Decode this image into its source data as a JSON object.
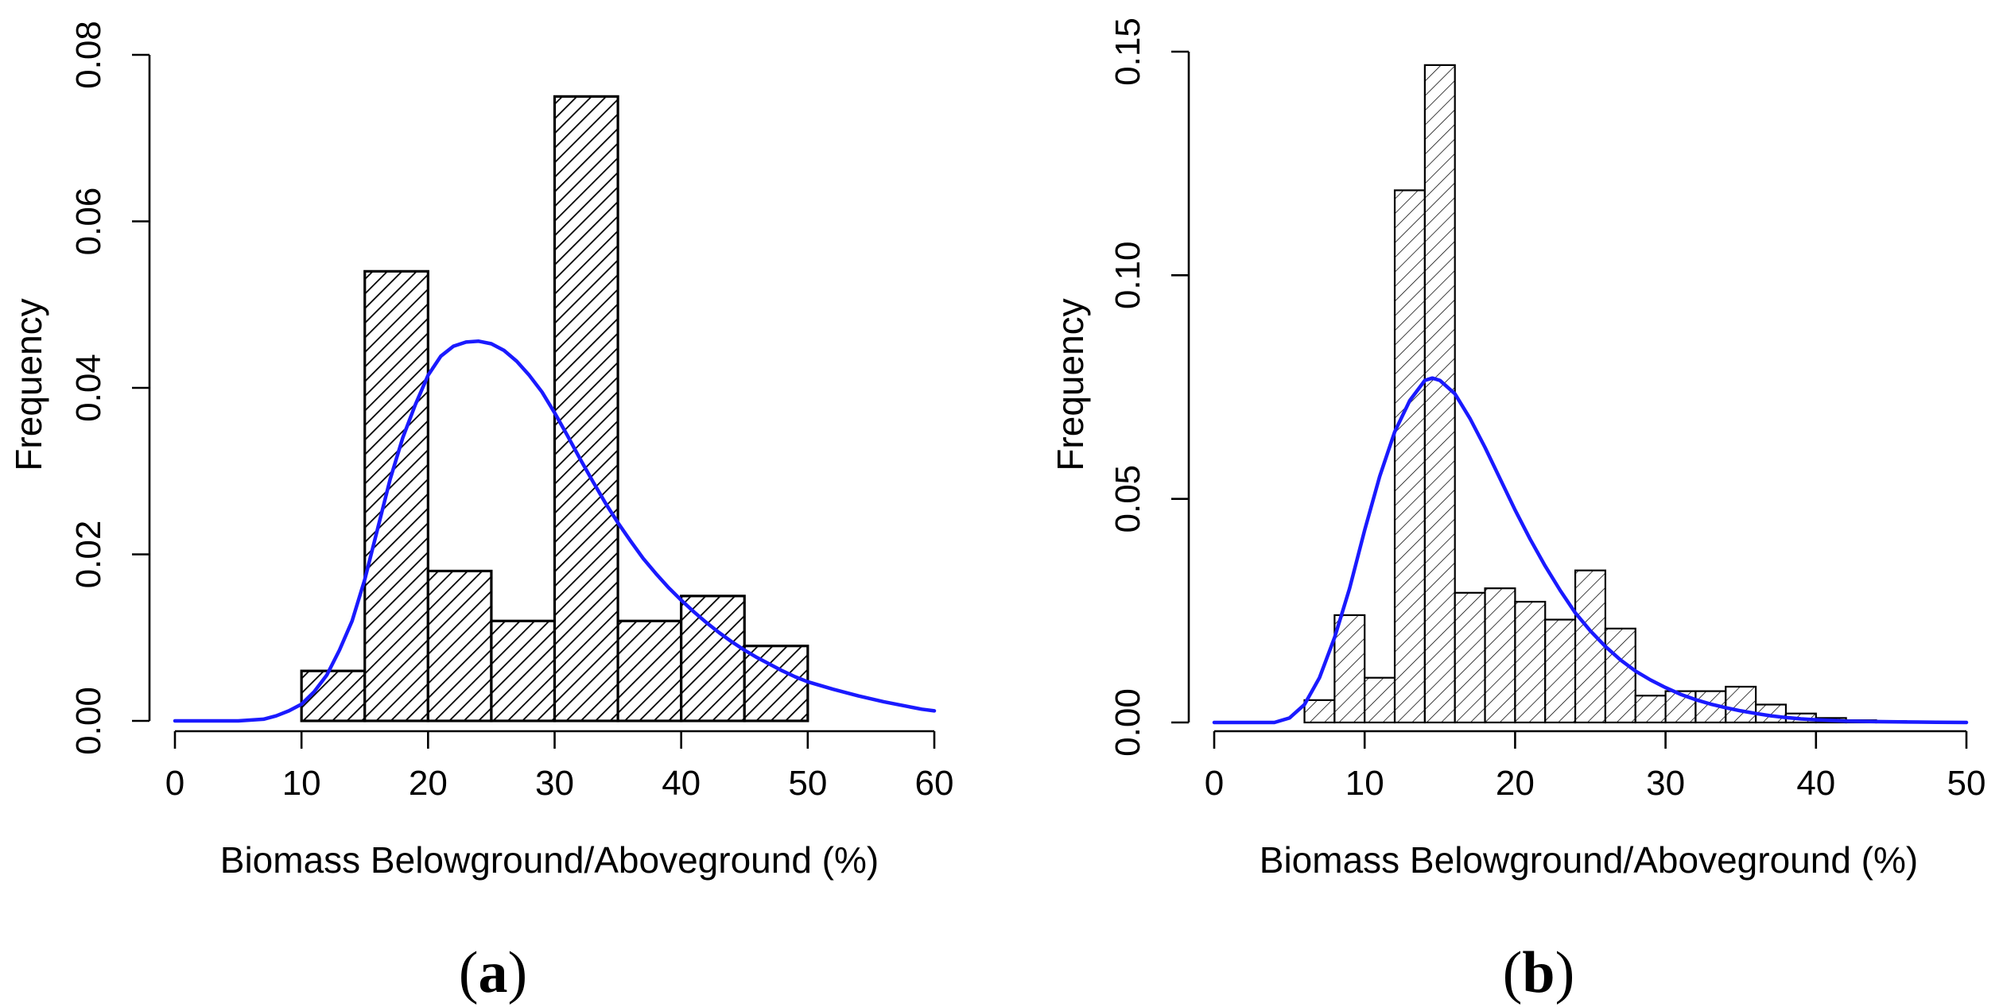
{
  "chart_data": [
    {
      "type": "bar",
      "panel_label": "a",
      "xlabel": "Biomass Belowground/Aboveground (%)",
      "ylabel": "Frequency",
      "xlim": [
        0,
        60
      ],
      "ylim": [
        0,
        0.08
      ],
      "x_ticks": [
        0,
        10,
        20,
        30,
        40,
        50,
        60
      ],
      "y_ticks": [
        0,
        0.02,
        0.04,
        0.06,
        0.08
      ],
      "x_tick_labels": [
        "0",
        "10",
        "20",
        "30",
        "40",
        "50",
        "60"
      ],
      "y_tick_labels": [
        "0.00",
        "0.02",
        "0.04",
        "0.06",
        "0.08"
      ],
      "bins": [
        {
          "x0": 10,
          "x1": 15,
          "value": 0.006
        },
        {
          "x0": 15,
          "x1": 20,
          "value": 0.054
        },
        {
          "x0": 20,
          "x1": 25,
          "value": 0.018
        },
        {
          "x0": 25,
          "x1": 30,
          "value": 0.012
        },
        {
          "x0": 30,
          "x1": 35,
          "value": 0.075
        },
        {
          "x0": 35,
          "x1": 40,
          "value": 0.012
        },
        {
          "x0": 40,
          "x1": 45,
          "value": 0.015
        },
        {
          "x0": 45,
          "x1": 50,
          "value": 0.009
        }
      ],
      "density_curve": {
        "color": "#1a1aff",
        "x": [
          0,
          5,
          7,
          8,
          9,
          10,
          11,
          12,
          13,
          14,
          15,
          16,
          17,
          18,
          19,
          20,
          21,
          22,
          23,
          24,
          25,
          26,
          27,
          28,
          29,
          30,
          31,
          32,
          33,
          34,
          35,
          36,
          37,
          38,
          39,
          40,
          41,
          42,
          43,
          44,
          45,
          46,
          47,
          48,
          49,
          50,
          52,
          54,
          56,
          58,
          59,
          60
        ],
        "y": [
          0,
          0,
          0.0002,
          0.0006,
          0.0012,
          0.002,
          0.0035,
          0.0055,
          0.0085,
          0.012,
          0.017,
          0.023,
          0.029,
          0.034,
          0.038,
          0.0415,
          0.0438,
          0.045,
          0.0455,
          0.0456,
          0.0453,
          0.0445,
          0.0432,
          0.0415,
          0.0395,
          0.037,
          0.0343,
          0.0315,
          0.0288,
          0.0262,
          0.0238,
          0.0216,
          0.0195,
          0.0177,
          0.016,
          0.0145,
          0.0131,
          0.0118,
          0.0106,
          0.0095,
          0.0085,
          0.0076,
          0.0068,
          0.006,
          0.0053,
          0.0047,
          0.0038,
          0.003,
          0.0023,
          0.0017,
          0.0014,
          0.0012
        ]
      }
    },
    {
      "type": "bar",
      "panel_label": "b",
      "xlabel": "Biomass Belowground/Aboveground (%)",
      "ylabel": "Frequency",
      "xlim": [
        0,
        50
      ],
      "ylim": [
        0,
        0.15
      ],
      "x_ticks": [
        0,
        10,
        20,
        30,
        40,
        50
      ],
      "y_ticks": [
        0,
        0.05,
        0.1,
        0.15
      ],
      "x_tick_labels": [
        "0",
        "10",
        "20",
        "30",
        "40",
        "50"
      ],
      "y_tick_labels": [
        "0.00",
        "0.05",
        "0.10",
        "0.15"
      ],
      "bins": [
        {
          "x0": 6,
          "x1": 8,
          "value": 0.005
        },
        {
          "x0": 8,
          "x1": 10,
          "value": 0.024
        },
        {
          "x0": 10,
          "x1": 12,
          "value": 0.01
        },
        {
          "x0": 12,
          "x1": 14,
          "value": 0.119
        },
        {
          "x0": 14,
          "x1": 16,
          "value": 0.147
        },
        {
          "x0": 16,
          "x1": 18,
          "value": 0.029
        },
        {
          "x0": 18,
          "x1": 20,
          "value": 0.03
        },
        {
          "x0": 20,
          "x1": 22,
          "value": 0.027
        },
        {
          "x0": 22,
          "x1": 24,
          "value": 0.023
        },
        {
          "x0": 24,
          "x1": 26,
          "value": 0.034
        },
        {
          "x0": 26,
          "x1": 28,
          "value": 0.021
        },
        {
          "x0": 28,
          "x1": 30,
          "value": 0.006
        },
        {
          "x0": 30,
          "x1": 32,
          "value": 0.007
        },
        {
          "x0": 32,
          "x1": 34,
          "value": 0.007
        },
        {
          "x0": 34,
          "x1": 36,
          "value": 0.008
        },
        {
          "x0": 36,
          "x1": 38,
          "value": 0.004
        },
        {
          "x0": 38,
          "x1": 40,
          "value": 0.002
        },
        {
          "x0": 40,
          "x1": 42,
          "value": 0.001
        },
        {
          "x0": 42,
          "x1": 44,
          "value": 0.0005
        },
        {
          "x0": 44,
          "x1": 46,
          "value": 0.0003
        },
        {
          "x0": 46,
          "x1": 48,
          "value": 0.0002
        }
      ],
      "density_curve": {
        "color": "#1a1aff",
        "x": [
          0,
          4,
          5,
          6,
          7,
          8,
          9,
          10,
          11,
          12,
          13,
          14,
          14.5,
          15,
          16,
          17,
          18,
          19,
          20,
          21,
          22,
          23,
          24,
          25,
          26,
          27,
          28,
          29,
          30,
          31,
          32,
          33,
          34,
          35,
          36,
          37,
          38,
          39,
          40,
          42,
          44,
          46,
          48,
          50
        ],
        "y": [
          0,
          0,
          0.001,
          0.004,
          0.01,
          0.019,
          0.03,
          0.043,
          0.055,
          0.065,
          0.072,
          0.0765,
          0.077,
          0.0765,
          0.0735,
          0.068,
          0.0615,
          0.0545,
          0.0475,
          0.041,
          0.035,
          0.0295,
          0.0245,
          0.0205,
          0.017,
          0.014,
          0.0115,
          0.0095,
          0.0078,
          0.0063,
          0.0051,
          0.0041,
          0.0033,
          0.0026,
          0.002,
          0.0015,
          0.0011,
          0.0008,
          0.0006,
          0.0003,
          0.0002,
          0.0001,
          5e-05,
          0
        ]
      }
    }
  ]
}
